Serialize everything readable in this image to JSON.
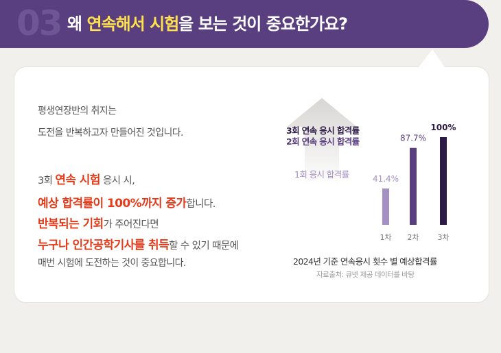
{
  "header": {
    "number": "03",
    "title_pre": "왜 ",
    "title_highlight_1": "연속해서 시험",
    "title_post": "을 보는 것이 중요한가요?"
  },
  "body": {
    "line1": "평생연장반의 취지는",
    "line2": "도전을 반복하고자 만들어진 것입니다.",
    "line3_pre": "3회 ",
    "line3_red": "연속 시험",
    "line3_post": " 응시 시,",
    "line4_red": "예상 합격률이 100%까지 증가",
    "line4_post": "합니다.",
    "line5_red": "반복되는 기회",
    "line5_post": "가 주어진다면",
    "line6_red": "누구나 인간공학기사를 취득",
    "line6_post": "할 수 있기 때문에",
    "line7": "매번 시험에 도전하는 것이 중요합니다."
  },
  "legend": {
    "third": "3회 연속 응시 합격률",
    "second": "2회 연속 응시 합격률",
    "first": "1회 응시 합격률"
  },
  "chart_data": {
    "type": "bar",
    "categories": [
      "1차",
      "2차",
      "3차"
    ],
    "values": [
      41.4,
      87.7,
      100
    ],
    "value_labels": [
      "41.4%",
      "87.7%",
      "100%"
    ],
    "colors": [
      "#a590c3",
      "#5a3f80",
      "#2b1b45"
    ],
    "label_colors": [
      "#a590c3",
      "#5a3f80",
      "#2b1b45"
    ],
    "ylim": [
      0,
      100
    ],
    "caption": "2024년 기준 연속응시 횟수 별 예상합격률",
    "source": "자료출처: 큐넷 제공 데이터를 바탕"
  },
  "colors": {
    "header_bg": "#5a3f80",
    "highlight": "#ffe14a",
    "emphasis_red": "#e53b1a"
  }
}
